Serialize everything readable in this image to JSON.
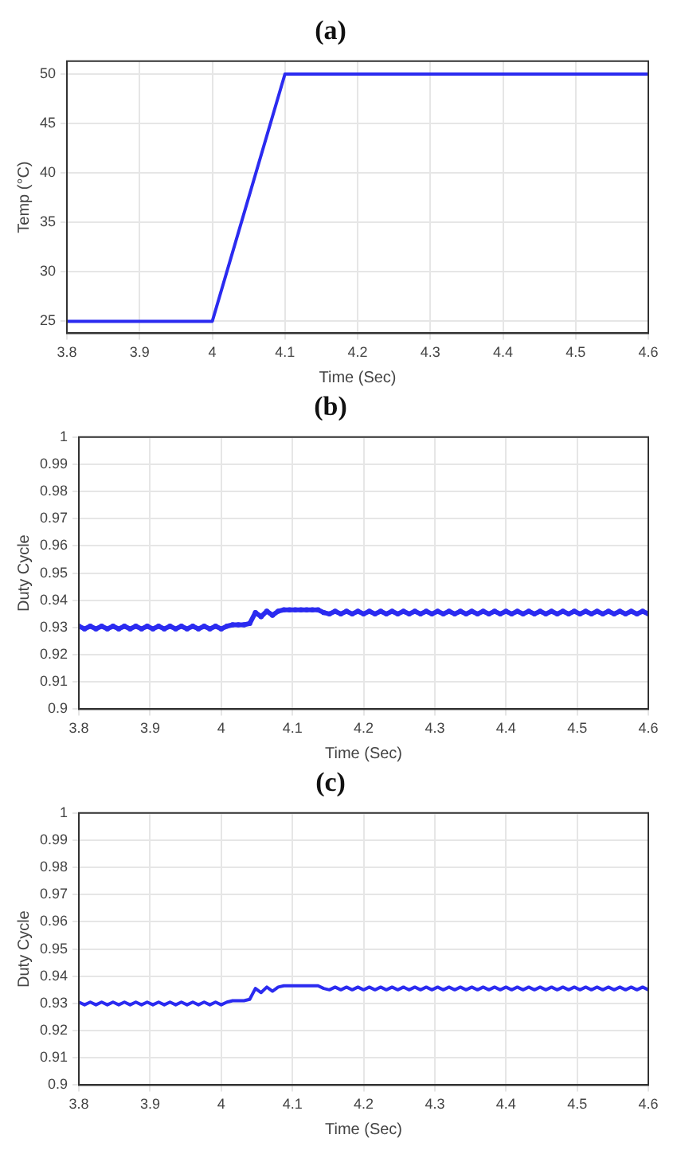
{
  "chart_data": [
    {
      "type": "line",
      "title": "(a)",
      "xlabel": "Time (Sec)",
      "ylabel": "Temp (°C)",
      "x": [
        3.8,
        4.0,
        4.1,
        4.6
      ],
      "values": [
        25,
        25,
        50,
        50
      ],
      "color": "#2b2bf0",
      "xlim": [
        3.8,
        4.6
      ],
      "ylim": [
        23.8,
        51.3
      ],
      "xticks": [
        3.8,
        3.9,
        4,
        4.1,
        4.2,
        4.3,
        4.4,
        4.5,
        4.6
      ],
      "yticks": [
        25,
        30,
        35,
        40,
        45,
        50
      ],
      "grid": true
    },
    {
      "type": "line",
      "title": "(b)",
      "xlabel": "Time (Sec)",
      "ylabel": "Duty Cycle",
      "marker": "circle",
      "x": [
        3.8,
        3.808,
        3.816,
        3.824,
        3.832,
        3.84,
        3.848,
        3.856,
        3.864,
        3.872,
        3.88,
        3.888,
        3.896,
        3.904,
        3.912,
        3.92,
        3.928,
        3.936,
        3.944,
        3.952,
        3.96,
        3.968,
        3.976,
        3.984,
        3.992,
        4.0,
        4.008,
        4.016,
        4.024,
        4.032,
        4.04,
        4.048,
        4.056,
        4.064,
        4.072,
        4.08,
        4.088,
        4.096,
        4.104,
        4.112,
        4.12,
        4.128,
        4.136,
        4.144,
        4.152,
        4.16,
        4.168,
        4.176,
        4.184,
        4.192,
        4.2,
        4.208,
        4.216,
        4.224,
        4.232,
        4.24,
        4.248,
        4.256,
        4.264,
        4.272,
        4.28,
        4.288,
        4.296,
        4.304,
        4.312,
        4.32,
        4.328,
        4.336,
        4.344,
        4.352,
        4.36,
        4.368,
        4.376,
        4.384,
        4.392,
        4.4,
        4.408,
        4.416,
        4.424,
        4.432,
        4.44,
        4.448,
        4.456,
        4.464,
        4.472,
        4.48,
        4.488,
        4.496,
        4.504,
        4.512,
        4.52,
        4.528,
        4.536,
        4.544,
        4.552,
        4.56,
        4.568,
        4.576,
        4.584,
        4.592,
        4.6
      ],
      "values": [
        0.9305,
        0.9295,
        0.9305,
        0.9295,
        0.9305,
        0.9295,
        0.9305,
        0.9295,
        0.9305,
        0.9295,
        0.9305,
        0.9295,
        0.9305,
        0.9295,
        0.9305,
        0.9295,
        0.9305,
        0.9295,
        0.9305,
        0.9295,
        0.9305,
        0.9295,
        0.9305,
        0.9295,
        0.9305,
        0.9295,
        0.9305,
        0.931,
        0.931,
        0.931,
        0.9315,
        0.9355,
        0.934,
        0.936,
        0.9345,
        0.936,
        0.9365,
        0.9365,
        0.9365,
        0.9365,
        0.9365,
        0.9365,
        0.9365,
        0.9355,
        0.935,
        0.936,
        0.935,
        0.936,
        0.935,
        0.936,
        0.935,
        0.936,
        0.935,
        0.936,
        0.935,
        0.936,
        0.935,
        0.936,
        0.935,
        0.936,
        0.935,
        0.936,
        0.935,
        0.936,
        0.935,
        0.936,
        0.935,
        0.936,
        0.935,
        0.936,
        0.935,
        0.936,
        0.935,
        0.936,
        0.935,
        0.936,
        0.935,
        0.936,
        0.935,
        0.936,
        0.935,
        0.936,
        0.935,
        0.936,
        0.935,
        0.936,
        0.935,
        0.936,
        0.935,
        0.936,
        0.935,
        0.936,
        0.935,
        0.936,
        0.935,
        0.936,
        0.935,
        0.936,
        0.935,
        0.936,
        0.935
      ],
      "color": "#2b2bf0",
      "xlim": [
        3.8,
        4.6
      ],
      "ylim": [
        0.9,
        1
      ],
      "xticks": [
        3.8,
        3.9,
        4,
        4.1,
        4.2,
        4.3,
        4.4,
        4.5,
        4.6
      ],
      "yticks": [
        0.9,
        0.91,
        0.92,
        0.93,
        0.94,
        0.95,
        0.96,
        0.97,
        0.98,
        0.99,
        1
      ],
      "grid": true
    },
    {
      "type": "line",
      "title": "(c)",
      "xlabel": "Time (Sec)",
      "ylabel": "Duty Cycle",
      "x": [
        3.8,
        3.808,
        3.816,
        3.824,
        3.832,
        3.84,
        3.848,
        3.856,
        3.864,
        3.872,
        3.88,
        3.888,
        3.896,
        3.904,
        3.912,
        3.92,
        3.928,
        3.936,
        3.944,
        3.952,
        3.96,
        3.968,
        3.976,
        3.984,
        3.992,
        4.0,
        4.008,
        4.016,
        4.024,
        4.032,
        4.04,
        4.048,
        4.056,
        4.064,
        4.072,
        4.08,
        4.088,
        4.096,
        4.104,
        4.112,
        4.12,
        4.128,
        4.136,
        4.144,
        4.152,
        4.16,
        4.168,
        4.176,
        4.184,
        4.192,
        4.2,
        4.208,
        4.216,
        4.224,
        4.232,
        4.24,
        4.248,
        4.256,
        4.264,
        4.272,
        4.28,
        4.288,
        4.296,
        4.304,
        4.312,
        4.32,
        4.328,
        4.336,
        4.344,
        4.352,
        4.36,
        4.368,
        4.376,
        4.384,
        4.392,
        4.4,
        4.408,
        4.416,
        4.424,
        4.432,
        4.44,
        4.448,
        4.456,
        4.464,
        4.472,
        4.48,
        4.488,
        4.496,
        4.504,
        4.512,
        4.52,
        4.528,
        4.536,
        4.544,
        4.552,
        4.56,
        4.568,
        4.576,
        4.584,
        4.592,
        4.6
      ],
      "values": [
        0.9305,
        0.9295,
        0.9305,
        0.9295,
        0.9305,
        0.9295,
        0.9305,
        0.9295,
        0.9305,
        0.9295,
        0.9305,
        0.9295,
        0.9305,
        0.9295,
        0.9305,
        0.9295,
        0.9305,
        0.9295,
        0.9305,
        0.9295,
        0.9305,
        0.9295,
        0.9305,
        0.9295,
        0.9305,
        0.9295,
        0.9305,
        0.931,
        0.931,
        0.931,
        0.9315,
        0.9355,
        0.934,
        0.936,
        0.9345,
        0.936,
        0.9365,
        0.9365,
        0.9365,
        0.9365,
        0.9365,
        0.9365,
        0.9365,
        0.9355,
        0.935,
        0.936,
        0.935,
        0.936,
        0.935,
        0.936,
        0.935,
        0.936,
        0.935,
        0.936,
        0.935,
        0.936,
        0.935,
        0.936,
        0.935,
        0.936,
        0.935,
        0.936,
        0.935,
        0.936,
        0.935,
        0.936,
        0.935,
        0.936,
        0.935,
        0.936,
        0.935,
        0.936,
        0.935,
        0.936,
        0.935,
        0.936,
        0.935,
        0.936,
        0.935,
        0.936,
        0.935,
        0.936,
        0.935,
        0.936,
        0.935,
        0.936,
        0.935,
        0.936,
        0.935,
        0.936,
        0.935,
        0.936,
        0.935,
        0.936,
        0.935,
        0.936,
        0.935,
        0.936,
        0.935,
        0.936,
        0.935
      ],
      "color": "#2b2bf0",
      "xlim": [
        3.8,
        4.6
      ],
      "ylim": [
        0.9,
        1
      ],
      "xticks": [
        3.8,
        3.9,
        4,
        4.1,
        4.2,
        4.3,
        4.4,
        4.5,
        4.6
      ],
      "yticks": [
        0.9,
        0.91,
        0.92,
        0.93,
        0.94,
        0.95,
        0.96,
        0.97,
        0.98,
        0.99,
        1
      ],
      "grid": true
    }
  ]
}
